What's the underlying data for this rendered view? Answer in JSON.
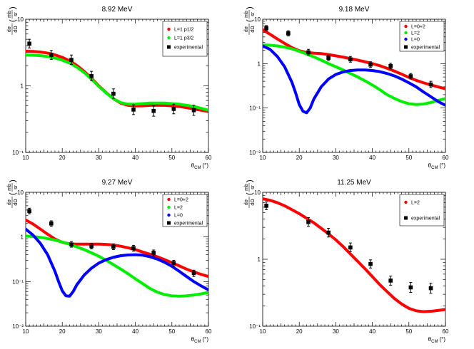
{
  "colors": {
    "red": "#ff0000",
    "green": "#00ee00",
    "blue": "#0000ff",
    "black": "#000000"
  },
  "chart_data": [
    {
      "type": "line",
      "title": "8.92 MeV",
      "xlabel_main": "θ",
      "xlabel_sub": "CM",
      "xlabel_unit": "(°)",
      "ylabel_num": "dσ",
      "ylabel_den": "dΩ",
      "ylabel_unit_num": "mb",
      "ylabel_unit_den": "sr",
      "xlim": [
        10,
        60
      ],
      "ylim": [
        0.1,
        10
      ],
      "yscale": "log",
      "xticks": [
        10,
        20,
        30,
        40,
        50,
        60
      ],
      "yticks": [
        {
          "v": 0.1,
          "l": "10⁻¹"
        },
        {
          "v": 1,
          "l": "1"
        },
        {
          "v": 10,
          "l": "10"
        }
      ],
      "legend_position": "top-right",
      "series": [
        {
          "name": "L=1 p1/2",
          "color": "#ff0000",
          "x": [
            10,
            12,
            14,
            16,
            18,
            20,
            22,
            24,
            26,
            28,
            30,
            32,
            34,
            36,
            38,
            40,
            42,
            44,
            46,
            48,
            50,
            52,
            54,
            56,
            58,
            60
          ],
          "y": [
            3.3,
            3.28,
            3.22,
            3.1,
            2.92,
            2.68,
            2.38,
            2.02,
            1.65,
            1.3,
            1.0,
            0.79,
            0.64,
            0.55,
            0.51,
            0.5,
            0.5,
            0.51,
            0.51,
            0.51,
            0.5,
            0.49,
            0.47,
            0.45,
            0.43,
            0.41
          ]
        },
        {
          "name": "L=1 p3/2",
          "color": "#00ee00",
          "x": [
            10,
            12,
            14,
            16,
            18,
            20,
            22,
            24,
            26,
            28,
            30,
            32,
            34,
            36,
            38,
            40,
            42,
            44,
            46,
            48,
            50,
            52,
            54,
            56,
            58,
            60
          ],
          "y": [
            2.9,
            2.88,
            2.84,
            2.76,
            2.62,
            2.43,
            2.2,
            1.9,
            1.58,
            1.26,
            0.98,
            0.78,
            0.64,
            0.56,
            0.53,
            0.53,
            0.54,
            0.55,
            0.55,
            0.55,
            0.54,
            0.53,
            0.51,
            0.49,
            0.46,
            0.43
          ]
        }
      ],
      "experimental": {
        "name": "experimental",
        "points": [
          {
            "x": 11,
            "y": 4.3,
            "lo": 3.7,
            "hi": 5.0
          },
          {
            "x": 17,
            "y": 2.9,
            "lo": 2.5,
            "hi": 3.4
          },
          {
            "x": 22.5,
            "y": 2.45,
            "lo": 2.1,
            "hi": 2.9
          },
          {
            "x": 28,
            "y": 1.4,
            "lo": 1.2,
            "hi": 1.65
          },
          {
            "x": 34,
            "y": 0.76,
            "lo": 0.65,
            "hi": 0.9
          },
          {
            "x": 39.5,
            "y": 0.44,
            "lo": 0.37,
            "hi": 0.52
          },
          {
            "x": 45,
            "y": 0.42,
            "lo": 0.35,
            "hi": 0.5
          },
          {
            "x": 50.5,
            "y": 0.45,
            "lo": 0.38,
            "hi": 0.53
          },
          {
            "x": 56,
            "y": 0.43,
            "lo": 0.36,
            "hi": 0.51
          }
        ]
      }
    },
    {
      "type": "line",
      "title": "9.18 MeV",
      "xlabel_main": "θ",
      "xlabel_sub": "CM",
      "xlabel_unit": "(°)",
      "ylabel_num": "dσ",
      "ylabel_den": "dΩ",
      "ylabel_unit_num": "mb",
      "ylabel_unit_den": "sr",
      "xlim": [
        10,
        60
      ],
      "ylim": [
        0.01,
        10
      ],
      "yscale": "log",
      "xticks": [
        10,
        20,
        30,
        40,
        50,
        60
      ],
      "yticks": [
        {
          "v": 0.01,
          "l": "10⁻²"
        },
        {
          "v": 0.1,
          "l": "10⁻¹"
        },
        {
          "v": 1,
          "l": "1"
        },
        {
          "v": 10,
          "l": "10"
        }
      ],
      "legend_position": "top-right",
      "series": [
        {
          "name": "L=0+2",
          "color": "#ff0000",
          "x": [
            10,
            12,
            14,
            16,
            18,
            20,
            22,
            24,
            26,
            28,
            30,
            32,
            34,
            36,
            38,
            40,
            42,
            44,
            46,
            48,
            50,
            52,
            54,
            56,
            58,
            60
          ],
          "y": [
            5.8,
            4.6,
            3.6,
            2.85,
            2.3,
            1.95,
            1.78,
            1.72,
            1.68,
            1.6,
            1.5,
            1.4,
            1.3,
            1.2,
            1.1,
            1.0,
            0.9,
            0.79,
            0.68,
            0.58,
            0.49,
            0.42,
            0.37,
            0.33,
            0.3,
            0.27
          ]
        },
        {
          "name": "L=2",
          "color": "#00ee00",
          "x": [
            10,
            12,
            14,
            16,
            18,
            20,
            22,
            24,
            26,
            28,
            30,
            32,
            34,
            36,
            38,
            40,
            42,
            44,
            46,
            48,
            50,
            52,
            54,
            56,
            58,
            60
          ],
          "y": [
            2.65,
            2.6,
            2.5,
            2.35,
            2.15,
            1.9,
            1.65,
            1.42,
            1.2,
            1.0,
            0.85,
            0.72,
            0.6,
            0.5,
            0.41,
            0.33,
            0.26,
            0.2,
            0.165,
            0.14,
            0.125,
            0.12,
            0.123,
            0.133,
            0.148,
            0.163
          ]
        },
        {
          "name": "L=0",
          "color": "#0000ff",
          "x": [
            10,
            12,
            14,
            16,
            18,
            19,
            20,
            21,
            22,
            23,
            24,
            26,
            28,
            30,
            32,
            34,
            36,
            38,
            40,
            42,
            44,
            46,
            48,
            50,
            52,
            54,
            56,
            58,
            60
          ],
          "y": [
            2.5,
            2.1,
            1.45,
            0.85,
            0.38,
            0.22,
            0.12,
            0.085,
            0.078,
            0.1,
            0.16,
            0.3,
            0.45,
            0.57,
            0.65,
            0.7,
            0.72,
            0.72,
            0.7,
            0.66,
            0.6,
            0.53,
            0.45,
            0.37,
            0.3,
            0.23,
            0.18,
            0.14,
            0.115
          ]
        }
      ],
      "experimental": {
        "name": "experimental",
        "points": [
          {
            "x": 11,
            "y": 6.3,
            "lo": 5.5,
            "hi": 7.2
          },
          {
            "x": 17,
            "y": 4.8,
            "lo": 4.2,
            "hi": 5.5
          },
          {
            "x": 22.5,
            "y": 1.8,
            "lo": 1.55,
            "hi": 2.1
          },
          {
            "x": 28,
            "y": 1.35,
            "lo": 1.17,
            "hi": 1.56
          },
          {
            "x": 34,
            "y": 1.25,
            "lo": 1.08,
            "hi": 1.45
          },
          {
            "x": 39.5,
            "y": 0.95,
            "lo": 0.82,
            "hi": 1.1
          },
          {
            "x": 45,
            "y": 0.88,
            "lo": 0.76,
            "hi": 1.02
          },
          {
            "x": 50.5,
            "y": 0.52,
            "lo": 0.45,
            "hi": 0.6
          },
          {
            "x": 56,
            "y": 0.34,
            "lo": 0.29,
            "hi": 0.4
          }
        ]
      }
    },
    {
      "type": "line",
      "title": "9.27 MeV",
      "xlabel_main": "θ",
      "xlabel_sub": "CM",
      "xlabel_unit": "(°)",
      "ylabel_num": "dσ",
      "ylabel_den": "dΩ",
      "ylabel_unit_num": "mb",
      "ylabel_unit_den": "sr",
      "xlim": [
        10,
        60
      ],
      "ylim": [
        0.01,
        10
      ],
      "yscale": "log",
      "xticks": [
        10,
        20,
        30,
        40,
        50,
        60
      ],
      "yticks": [
        {
          "v": 0.01,
          "l": "10⁻²"
        },
        {
          "v": 0.1,
          "l": "10⁻¹"
        },
        {
          "v": 1,
          "l": "1"
        },
        {
          "v": 10,
          "l": "10"
        }
      ],
      "legend_position": "top-right",
      "series": [
        {
          "name": "L=0+2",
          "color": "#ff0000",
          "x": [
            10,
            12,
            14,
            16,
            18,
            20,
            22,
            24,
            26,
            28,
            30,
            32,
            34,
            36,
            38,
            40,
            42,
            44,
            46,
            48,
            50,
            52,
            54,
            56,
            58,
            60
          ],
          "y": [
            2.4,
            1.95,
            1.5,
            1.15,
            0.9,
            0.76,
            0.7,
            0.69,
            0.69,
            0.69,
            0.69,
            0.68,
            0.66,
            0.62,
            0.57,
            0.52,
            0.46,
            0.41,
            0.36,
            0.31,
            0.265,
            0.225,
            0.19,
            0.165,
            0.145,
            0.13
          ]
        },
        {
          "name": "L=2",
          "color": "#00ee00",
          "x": [
            10,
            12,
            14,
            16,
            18,
            20,
            22,
            24,
            26,
            28,
            30,
            32,
            34,
            36,
            38,
            40,
            42,
            44,
            46,
            48,
            50,
            52,
            54,
            56,
            58,
            60
          ],
          "y": [
            1.05,
            1.02,
            0.98,
            0.92,
            0.85,
            0.77,
            0.69,
            0.6,
            0.52,
            0.44,
            0.37,
            0.3,
            0.24,
            0.19,
            0.15,
            0.115,
            0.09,
            0.07,
            0.058,
            0.051,
            0.048,
            0.047,
            0.048,
            0.05,
            0.053,
            0.057
          ]
        },
        {
          "name": "L=0",
          "color": "#0000ff",
          "x": [
            10,
            12,
            14,
            16,
            18,
            19,
            20,
            21,
            22,
            23,
            24,
            26,
            28,
            30,
            32,
            34,
            36,
            38,
            40,
            42,
            44,
            46,
            48,
            50,
            52,
            54,
            56,
            58,
            60
          ],
          "y": [
            1.5,
            1.1,
            0.72,
            0.4,
            0.17,
            0.1,
            0.062,
            0.048,
            0.047,
            0.06,
            0.085,
            0.14,
            0.2,
            0.26,
            0.31,
            0.35,
            0.38,
            0.395,
            0.4,
            0.39,
            0.36,
            0.32,
            0.27,
            0.22,
            0.17,
            0.13,
            0.1,
            0.08,
            0.065
          ]
        }
      ],
      "experimental": {
        "name": "experimental",
        "points": [
          {
            "x": 11,
            "y": 3.8,
            "lo": 3.3,
            "hi": 4.4
          },
          {
            "x": 17,
            "y": 2.0,
            "lo": 1.73,
            "hi": 2.3
          },
          {
            "x": 22.5,
            "y": 0.68,
            "lo": 0.59,
            "hi": 0.79
          },
          {
            "x": 28,
            "y": 0.62,
            "lo": 0.54,
            "hi": 0.72
          },
          {
            "x": 34,
            "y": 0.6,
            "lo": 0.52,
            "hi": 0.7
          },
          {
            "x": 39.5,
            "y": 0.56,
            "lo": 0.48,
            "hi": 0.65
          },
          {
            "x": 45,
            "y": 0.44,
            "lo": 0.38,
            "hi": 0.51
          },
          {
            "x": 50.5,
            "y": 0.26,
            "lo": 0.22,
            "hi": 0.3
          },
          {
            "x": 56,
            "y": 0.155,
            "lo": 0.13,
            "hi": 0.18
          }
        ]
      }
    },
    {
      "type": "line",
      "title": "11.25 MeV",
      "xlabel_main": "θ",
      "xlabel_sub": "CM",
      "xlabel_unit": "(°)",
      "ylabel_num": "dσ",
      "ylabel_den": "dΩ",
      "ylabel_unit_num": "mb",
      "ylabel_unit_den": "sr",
      "xlim": [
        10,
        60
      ],
      "ylim": [
        0.1,
        10
      ],
      "yscale": "log",
      "xticks": [
        10,
        20,
        30,
        40,
        50,
        60
      ],
      "yticks": [
        {
          "v": 0.1,
          "l": "10⁻¹"
        },
        {
          "v": 1,
          "l": "1"
        },
        {
          "v": 10,
          "l": "10"
        }
      ],
      "legend_position": "top-right",
      "series": [
        {
          "name": "L=2",
          "color": "#ff0000",
          "x": [
            10,
            12,
            14,
            16,
            18,
            20,
            22,
            24,
            26,
            28,
            30,
            32,
            34,
            36,
            38,
            40,
            42,
            44,
            46,
            48,
            50,
            52,
            54,
            56,
            58,
            60
          ],
          "y": [
            8.0,
            7.6,
            7.0,
            6.3,
            5.5,
            4.8,
            4.1,
            3.5,
            2.9,
            2.4,
            1.95,
            1.55,
            1.2,
            0.93,
            0.72,
            0.55,
            0.42,
            0.33,
            0.26,
            0.215,
            0.185,
            0.17,
            0.165,
            0.167,
            0.172,
            0.178
          ]
        }
      ],
      "experimental": {
        "name": "experimental",
        "points": [
          {
            "x": 11,
            "y": 6.3,
            "lo": 5.5,
            "hi": 7.2
          },
          {
            "x": 22.5,
            "y": 3.6,
            "lo": 3.1,
            "hi": 4.2
          },
          {
            "x": 28,
            "y": 2.5,
            "lo": 2.15,
            "hi": 2.9
          },
          {
            "x": 34,
            "y": 1.5,
            "lo": 1.3,
            "hi": 1.75
          },
          {
            "x": 39.5,
            "y": 0.85,
            "lo": 0.74,
            "hi": 0.98
          },
          {
            "x": 45,
            "y": 0.48,
            "lo": 0.41,
            "hi": 0.56
          },
          {
            "x": 50.5,
            "y": 0.38,
            "lo": 0.32,
            "hi": 0.45
          },
          {
            "x": 56,
            "y": 0.37,
            "lo": 0.31,
            "hi": 0.44
          }
        ]
      }
    }
  ]
}
